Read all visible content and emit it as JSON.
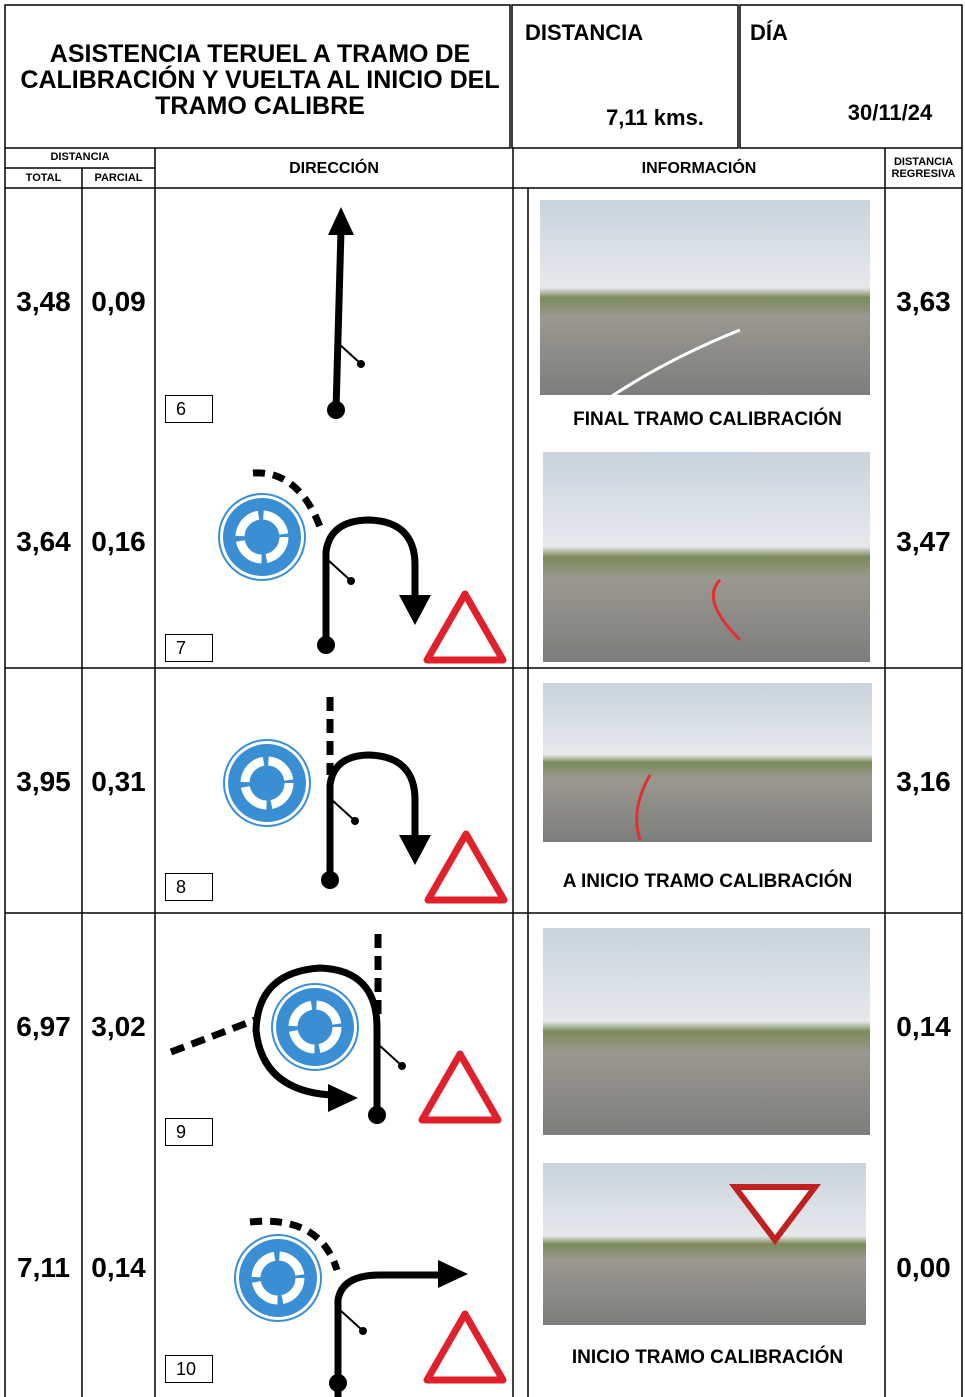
{
  "header": {
    "title": "ASISTENCIA TERUEL A TRAMO DE CALIBRACIÓN Y VUELTA AL INICIO DEL TRAMO CALIBRE",
    "distance_label": "DISTANCIA",
    "distance": "7,11 kms.",
    "day_label": "DÍA",
    "day": "30/11/24"
  },
  "columns": {
    "distance": "DISTANCIA",
    "total": "TOTAL",
    "partial": "PARCIAL",
    "direction": "DIRECCIÓN",
    "information": "INFORMACIÓN",
    "regressive": "DISTANCIA REGRESIVA"
  },
  "rows": [
    {
      "total": "3,48",
      "partial": "0,09",
      "number": "6",
      "caption": "FINAL TRAMO CALIBRACIÓN",
      "regressive": "3,63"
    },
    {
      "total": "3,64",
      "partial": "0,16",
      "number": "7",
      "regressive": "3,47"
    },
    {
      "total": "3,95",
      "partial": "0,31",
      "number": "8",
      "caption": "A INICIO TRAMO CALIBRACIÓN",
      "regressive": "3,16"
    },
    {
      "total": "6,97",
      "partial": "3,02",
      "number": "9",
      "regressive": "0,14"
    },
    {
      "total": "7,11",
      "partial": "0,14",
      "number": "10",
      "caption": "INICIO TRAMO CALIBRACIÓN",
      "regressive": "0,00"
    }
  ]
}
